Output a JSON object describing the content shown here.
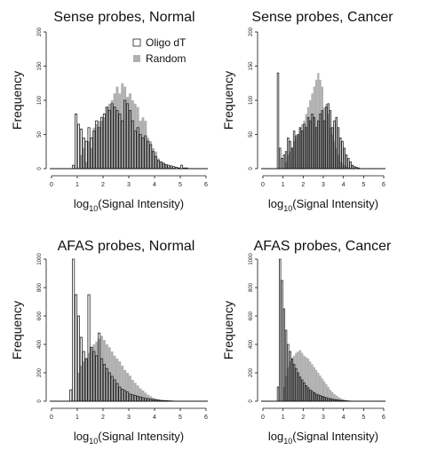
{
  "colors": {
    "random": "#b0b0b0",
    "oligo_fill": "#ffffff",
    "outline": "#222222"
  },
  "chart_data": [
    {
      "type": "bar",
      "title": "Sense probes, Normal",
      "xlabel_prefix": "log",
      "xlabel_sub": "10",
      "xlabel_suffix": "(Signal Intensity)",
      "ylabel": "Frequency",
      "xlim": [
        0,
        6
      ],
      "ylim": [
        0,
        200
      ],
      "xticks": [
        0,
        1,
        2,
        3,
        4,
        5,
        6
      ],
      "yticks": [
        0,
        50,
        100,
        150,
        200
      ],
      "legend": {
        "position": "top-right",
        "entries": [
          "Oligo dT",
          "Random"
        ]
      },
      "bin_width": 0.1,
      "bin_start": 0.7,
      "series": [
        {
          "name": "Oligo dT",
          "values": [
            0,
            5,
            80,
            65,
            58,
            45,
            40,
            60,
            45,
            55,
            70,
            60,
            75,
            80,
            90,
            85,
            95,
            90,
            85,
            80,
            70,
            100,
            95,
            85,
            70,
            55,
            60,
            50,
            45,
            48,
            40,
            35,
            25,
            18,
            12,
            10,
            8,
            6,
            5,
            4,
            3,
            2,
            1,
            5,
            1,
            1,
            0,
            0
          ]
        },
        {
          "name": "Random",
          "values": [
            0,
            0,
            0,
            0,
            20,
            30,
            10,
            40,
            30,
            60,
            65,
            70,
            70,
            75,
            90,
            95,
            100,
            110,
            120,
            110,
            125,
            120,
            105,
            110,
            100,
            95,
            90,
            70,
            75,
            70,
            45,
            40,
            30,
            25,
            15,
            10,
            8,
            5,
            3,
            2,
            1,
            0,
            0,
            0,
            0,
            0,
            0,
            0
          ]
        }
      ]
    },
    {
      "type": "bar",
      "title": "Sense probes, Cancer",
      "xlabel_prefix": "log",
      "xlabel_sub": "10",
      "xlabel_suffix": "(Signal Intensity)",
      "ylabel": "Frequency",
      "xlim": [
        0,
        6
      ],
      "ylim": [
        0,
        200
      ],
      "xticks": [
        0,
        1,
        2,
        3,
        4,
        5,
        6
      ],
      "yticks": [
        0,
        50,
        100,
        150,
        200
      ],
      "bin_width": 0.1,
      "bin_start": 0.7,
      "series": [
        {
          "name": "Oligo dT",
          "values": [
            140,
            30,
            15,
            20,
            25,
            45,
            40,
            30,
            55,
            48,
            50,
            60,
            55,
            65,
            60,
            75,
            70,
            80,
            75,
            60,
            70,
            80,
            85,
            70,
            90,
            95,
            85,
            60,
            70,
            75,
            60,
            45,
            40,
            30,
            20,
            15,
            10,
            5,
            3,
            2,
            1,
            0,
            0
          ]
        },
        {
          "name": "Random",
          "values": [
            0,
            0,
            0,
            0,
            10,
            20,
            25,
            30,
            40,
            45,
            50,
            60,
            65,
            70,
            80,
            90,
            100,
            110,
            120,
            130,
            140,
            130,
            120,
            90,
            95,
            80,
            60,
            50,
            40,
            30,
            20,
            10,
            8,
            5,
            3,
            2,
            1,
            0,
            0,
            0,
            0,
            0,
            0
          ]
        }
      ]
    },
    {
      "type": "bar",
      "title": "AFAS probes, Normal",
      "xlabel_prefix": "log",
      "xlabel_sub": "10",
      "xlabel_suffix": "(Signal Intensity)",
      "ylabel": "Frequency",
      "xlim": [
        0,
        6
      ],
      "ylim": [
        0,
        1000
      ],
      "xticks": [
        0,
        1,
        2,
        3,
        4,
        5,
        6
      ],
      "yticks": [
        0,
        200,
        400,
        600,
        800,
        1000
      ],
      "bin_width": 0.1,
      "bin_start": 0.7,
      "series": [
        {
          "name": "Oligo dT",
          "values": [
            80,
            1000,
            750,
            600,
            450,
            350,
            300,
            750,
            380,
            350,
            320,
            480,
            300,
            260,
            230,
            200,
            175,
            150,
            125,
            100,
            85,
            75,
            65,
            50,
            45,
            40,
            35,
            30,
            25,
            20,
            18,
            15,
            12,
            10,
            8,
            6,
            5,
            4,
            3,
            2,
            1,
            0,
            0,
            0
          ]
        },
        {
          "name": "Random",
          "values": [
            0,
            0,
            0,
            200,
            250,
            280,
            300,
            340,
            380,
            400,
            420,
            440,
            460,
            430,
            400,
            380,
            350,
            320,
            300,
            280,
            250,
            220,
            200,
            180,
            150,
            130,
            110,
            90,
            75,
            60,
            45,
            35,
            25,
            18,
            12,
            8,
            5,
            3,
            2,
            1,
            0,
            0,
            0,
            0
          ]
        }
      ]
    },
    {
      "type": "bar",
      "title": "AFAS probes, Cancer",
      "xlabel_prefix": "log",
      "xlabel_sub": "10",
      "xlabel_suffix": "(Signal Intensity)",
      "ylabel": "Frequency",
      "xlim": [
        0,
        6
      ],
      "ylim": [
        0,
        1000
      ],
      "xticks": [
        0,
        1,
        2,
        3,
        4,
        5,
        6
      ],
      "yticks": [
        0,
        200,
        400,
        600,
        800,
        1000
      ],
      "bin_width": 0.1,
      "bin_start": 0.7,
      "series": [
        {
          "name": "Oligo dT",
          "values": [
            100,
            1000,
            850,
            650,
            500,
            400,
            350,
            300,
            260,
            230,
            200,
            170,
            150,
            130,
            110,
            95,
            80,
            70,
            60,
            50,
            45,
            40,
            35,
            30,
            25,
            20,
            18,
            15,
            12,
            10,
            8,
            6,
            5,
            4,
            3,
            2,
            1,
            0,
            0,
            0,
            0,
            0
          ]
        },
        {
          "name": "Random",
          "values": [
            0,
            0,
            0,
            100,
            180,
            240,
            280,
            300,
            320,
            340,
            350,
            360,
            340,
            320,
            310,
            300,
            280,
            260,
            240,
            220,
            200,
            180,
            160,
            140,
            120,
            100,
            80,
            65,
            50,
            40,
            30,
            22,
            15,
            10,
            6,
            4,
            2,
            1,
            0,
            0,
            0,
            0
          ]
        }
      ]
    }
  ]
}
